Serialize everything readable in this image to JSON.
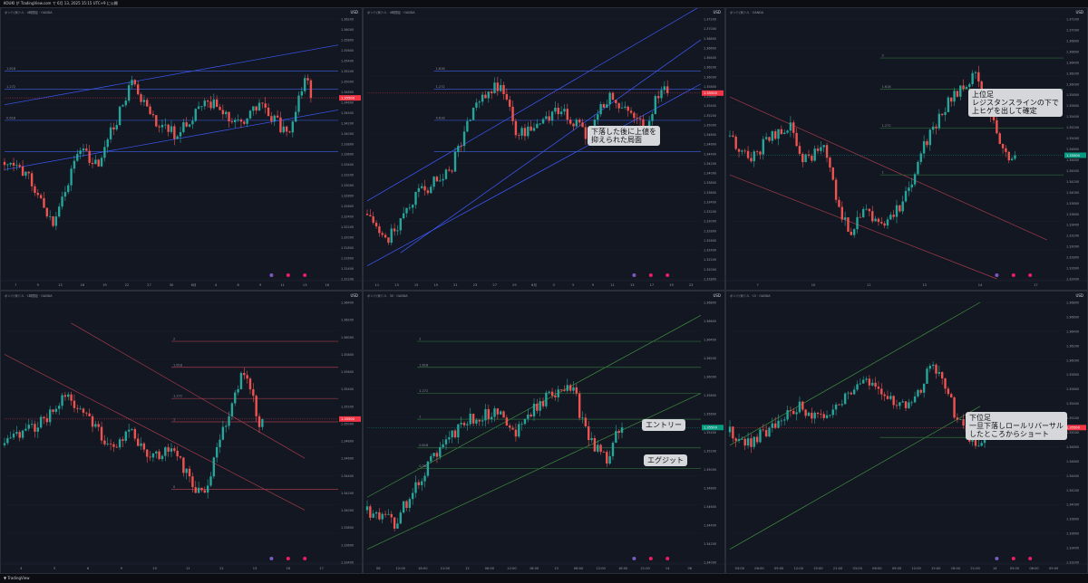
{
  "window": {
    "title_bar": "KOUKI が TradingView.com で 6月 13, 2025 15:15 UTC+9 に公開",
    "footer_brand": "TradingView"
  },
  "panels": [
    {
      "legend": "ポンド/米ドル · 4時間足 · OANDA",
      "currency": "USD",
      "price_tag": "1.35500",
      "time_labels": [
        "7",
        "9",
        "13",
        "16",
        "19",
        "22",
        "27",
        "30",
        "6月",
        "4",
        "6",
        "9",
        "11",
        "13",
        "16"
      ],
      "price_labels": [
        "1.36200",
        "1.36000",
        "1.35800",
        "1.35600",
        "1.35400",
        "1.35200",
        "1.35000",
        "1.34800",
        "1.34600",
        "1.34400",
        "1.34200",
        "1.34000",
        "1.33800",
        "1.33600",
        "1.33400",
        "1.33200",
        "1.33000",
        "1.32800",
        "1.32600",
        "1.32400",
        "1.32200",
        "1.32000",
        "1.31800",
        "1.31600",
        "1.31400",
        "1.31200"
      ],
      "fib_labels": [
        "1.618",
        "1.272",
        "0.618"
      ],
      "left_label": "ROSSI",
      "callout": ""
    },
    {
      "legend": "ポンド/米ドル · 4時間足 · OANDA",
      "currency": "USD",
      "price_tag": "1.35500",
      "time_labels": [
        "11",
        "13",
        "15",
        "19",
        "21",
        "23",
        "27",
        "29",
        "6月",
        "3",
        "5",
        "9",
        "11",
        "13",
        "17",
        "19",
        "23"
      ],
      "price_labels": [
        "1.37200",
        "1.37000",
        "1.36800",
        "1.36600",
        "1.36400",
        "1.36200",
        "1.36000",
        "1.35800",
        "1.35600",
        "1.35400",
        "1.35200",
        "1.35000",
        "1.34800",
        "1.34600",
        "1.34400",
        "1.34200",
        "1.34000",
        "1.33800",
        "1.33600",
        "1.33400",
        "1.33200",
        "1.33000",
        "1.32800",
        "1.32600",
        "1.32400",
        "1.32200",
        "1.32000",
        "1.31800"
      ],
      "fib_labels": [
        "1.618",
        "1.272",
        "0.618"
      ],
      "callout": "下落した後に上値を\n抑えられた局面"
    },
    {
      "legend": "ポンド/米ドル · OANDA",
      "currency": "USD",
      "price_tag": "1.35500",
      "time_labels": [
        "7",
        "10",
        "11",
        "13",
        "14",
        "17"
      ],
      "price_labels": [
        "1.37200",
        "1.37000",
        "1.36800",
        "1.36600",
        "1.36400",
        "1.36200",
        "1.36000",
        "1.35800",
        "1.35600",
        "1.35400",
        "1.35200",
        "1.35000",
        "1.34800",
        "1.34600",
        "1.34400",
        "1.34200",
        "1.34000",
        "1.33800",
        "1.33600",
        "1.33400",
        "1.33200",
        "1.33000",
        "1.32800",
        "1.32600",
        "1.32400"
      ],
      "fib_labels": [
        "2",
        "1.618",
        "1.272",
        "1",
        "0.382"
      ],
      "callout": "上位足\nレジスタンスラインの下で\n上ヒゲを出して確定"
    },
    {
      "legend": "ポンド/米ドル · 1時間足 · OANDA",
      "currency": "USD",
      "price_tag": "1.35500",
      "time_labels": [
        "4",
        "5",
        "6",
        "9",
        "10",
        "11",
        "12",
        "13",
        "16",
        "17"
      ],
      "price_labels": [
        "1.36400",
        "1.36200",
        "1.36000",
        "1.35800",
        "1.35600",
        "1.35400",
        "1.35200",
        "1.35000",
        "1.34800",
        "1.34600",
        "1.34400",
        "1.34200",
        "1.34000",
        "1.33800",
        "1.33600",
        "1.33400"
      ],
      "fib_labels": [
        "2",
        "1.618",
        "1.272",
        "1",
        "0"
      ],
      "callout": ""
    },
    {
      "legend": "ポンド/米ドル · 30 · OANDA",
      "currency": "USD",
      "price_tag": "1.35500",
      "time_labels": [
        "06",
        "12:00",
        "18:00",
        "21:00",
        "12",
        "06:00",
        "12:00",
        "18:00",
        "13",
        "06:00",
        "12:00",
        "18:00",
        "21:00",
        "14",
        "06"
      ],
      "price_labels": [
        "1.36800",
        "1.36600",
        "1.36400",
        "1.36200",
        "1.36000",
        "1.35800",
        "1.35600",
        "1.35400",
        "1.35200",
        "1.35000",
        "1.34800",
        "1.34600",
        "1.34400",
        "1.34200",
        "1.34000"
      ],
      "fib_labels": [
        "2",
        "1.618",
        "1.272",
        "1",
        "0.618",
        "0.382"
      ],
      "callout_entry": "エントリー",
      "callout_exit": "エグジット",
      "callout": ""
    },
    {
      "legend": "ポンド/米ドル · 15 · OANDA",
      "currency": "USD",
      "price_tag": "1.35500",
      "time_labels": [
        "03:00",
        "06:00",
        "09:00",
        "12:00",
        "15:00",
        "21:00",
        "03:00",
        "06:00",
        "09:00",
        "12:00",
        "15:00",
        "18:00",
        "21:00",
        "14",
        "03:00",
        "06:00",
        "09:00"
      ],
      "price_labels": [
        "1.36800",
        "1.36600",
        "1.36400",
        "1.36200",
        "1.36000",
        "1.35800",
        "1.35600",
        "1.35400",
        "1.35200",
        "1.35000",
        "1.34800",
        "1.34600",
        "1.34400",
        "1.34200",
        "1.34000",
        "1.33800",
        "1.33600",
        "1.33400",
        "1.33200"
      ],
      "fib_labels": [],
      "callout": "下位足\n一旦下落しロールリバーサル\nしたところからショート"
    }
  ],
  "colors": {
    "bull": "#26a69a",
    "bear": "#ef5350",
    "bg": "#131722",
    "blue_line": "#3d5afe",
    "red_line": "#b84a5a",
    "green_line": "#3f8f3f",
    "level_line": "#3a55c8",
    "price_tag_red": "#f23645",
    "price_tag_green": "#089981"
  }
}
